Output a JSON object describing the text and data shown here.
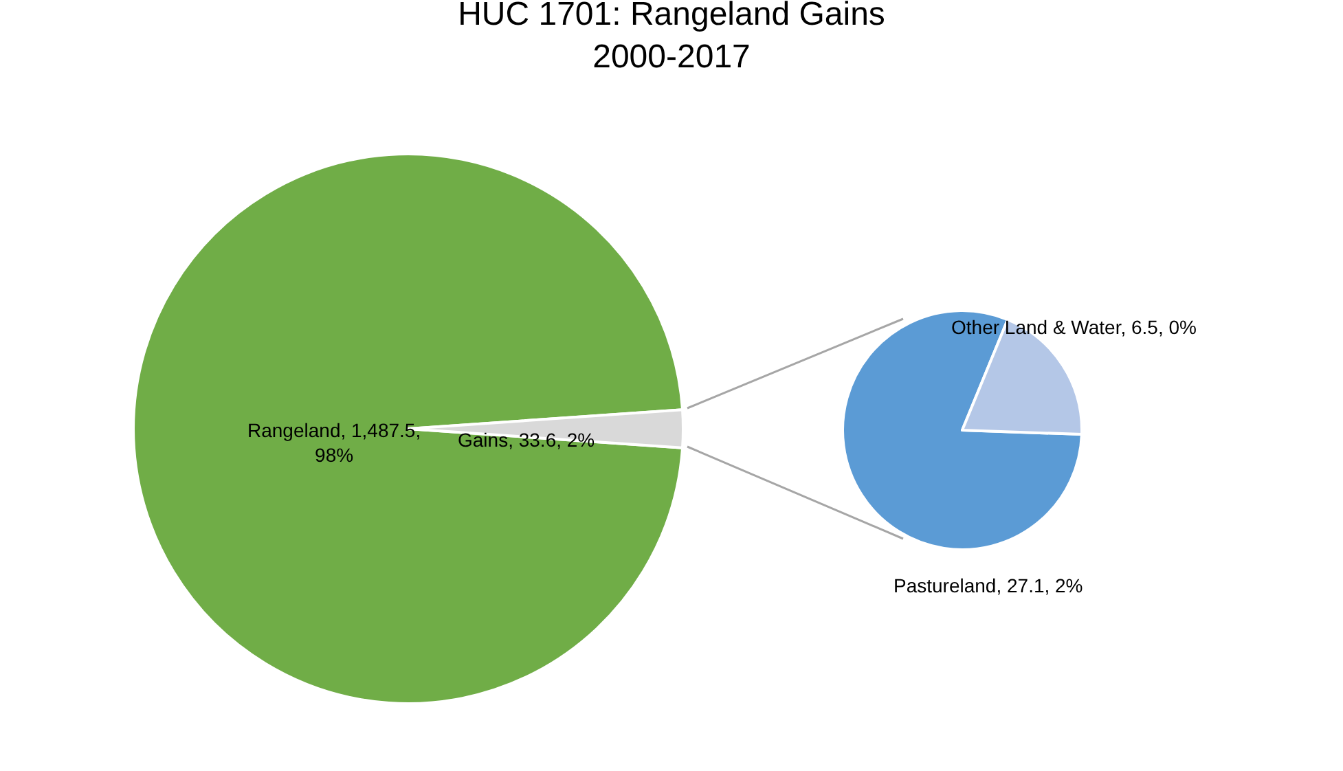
{
  "chart_data": [
    {
      "type": "pie",
      "title": "HUC 1701: Rangeland Gains\n2000-2017",
      "categories": [
        "Rangeland",
        "Gains"
      ],
      "values": [
        1487.5,
        33.6
      ],
      "colors": [
        "#70ad47",
        "#d9d9d9"
      ],
      "value_labels": [
        "1,487.5, 98%",
        "33.6, 2%"
      ],
      "legend": false
    },
    {
      "type": "pie",
      "categories": [
        "Pastureland",
        "Other Land & Water"
      ],
      "values": [
        27.1,
        6.5
      ],
      "colors": [
        "#5b9bd5",
        "#b4c7e7"
      ],
      "value_labels": [
        "27.1, 2%",
        "6.5, 0%"
      ],
      "legend": false
    }
  ]
}
